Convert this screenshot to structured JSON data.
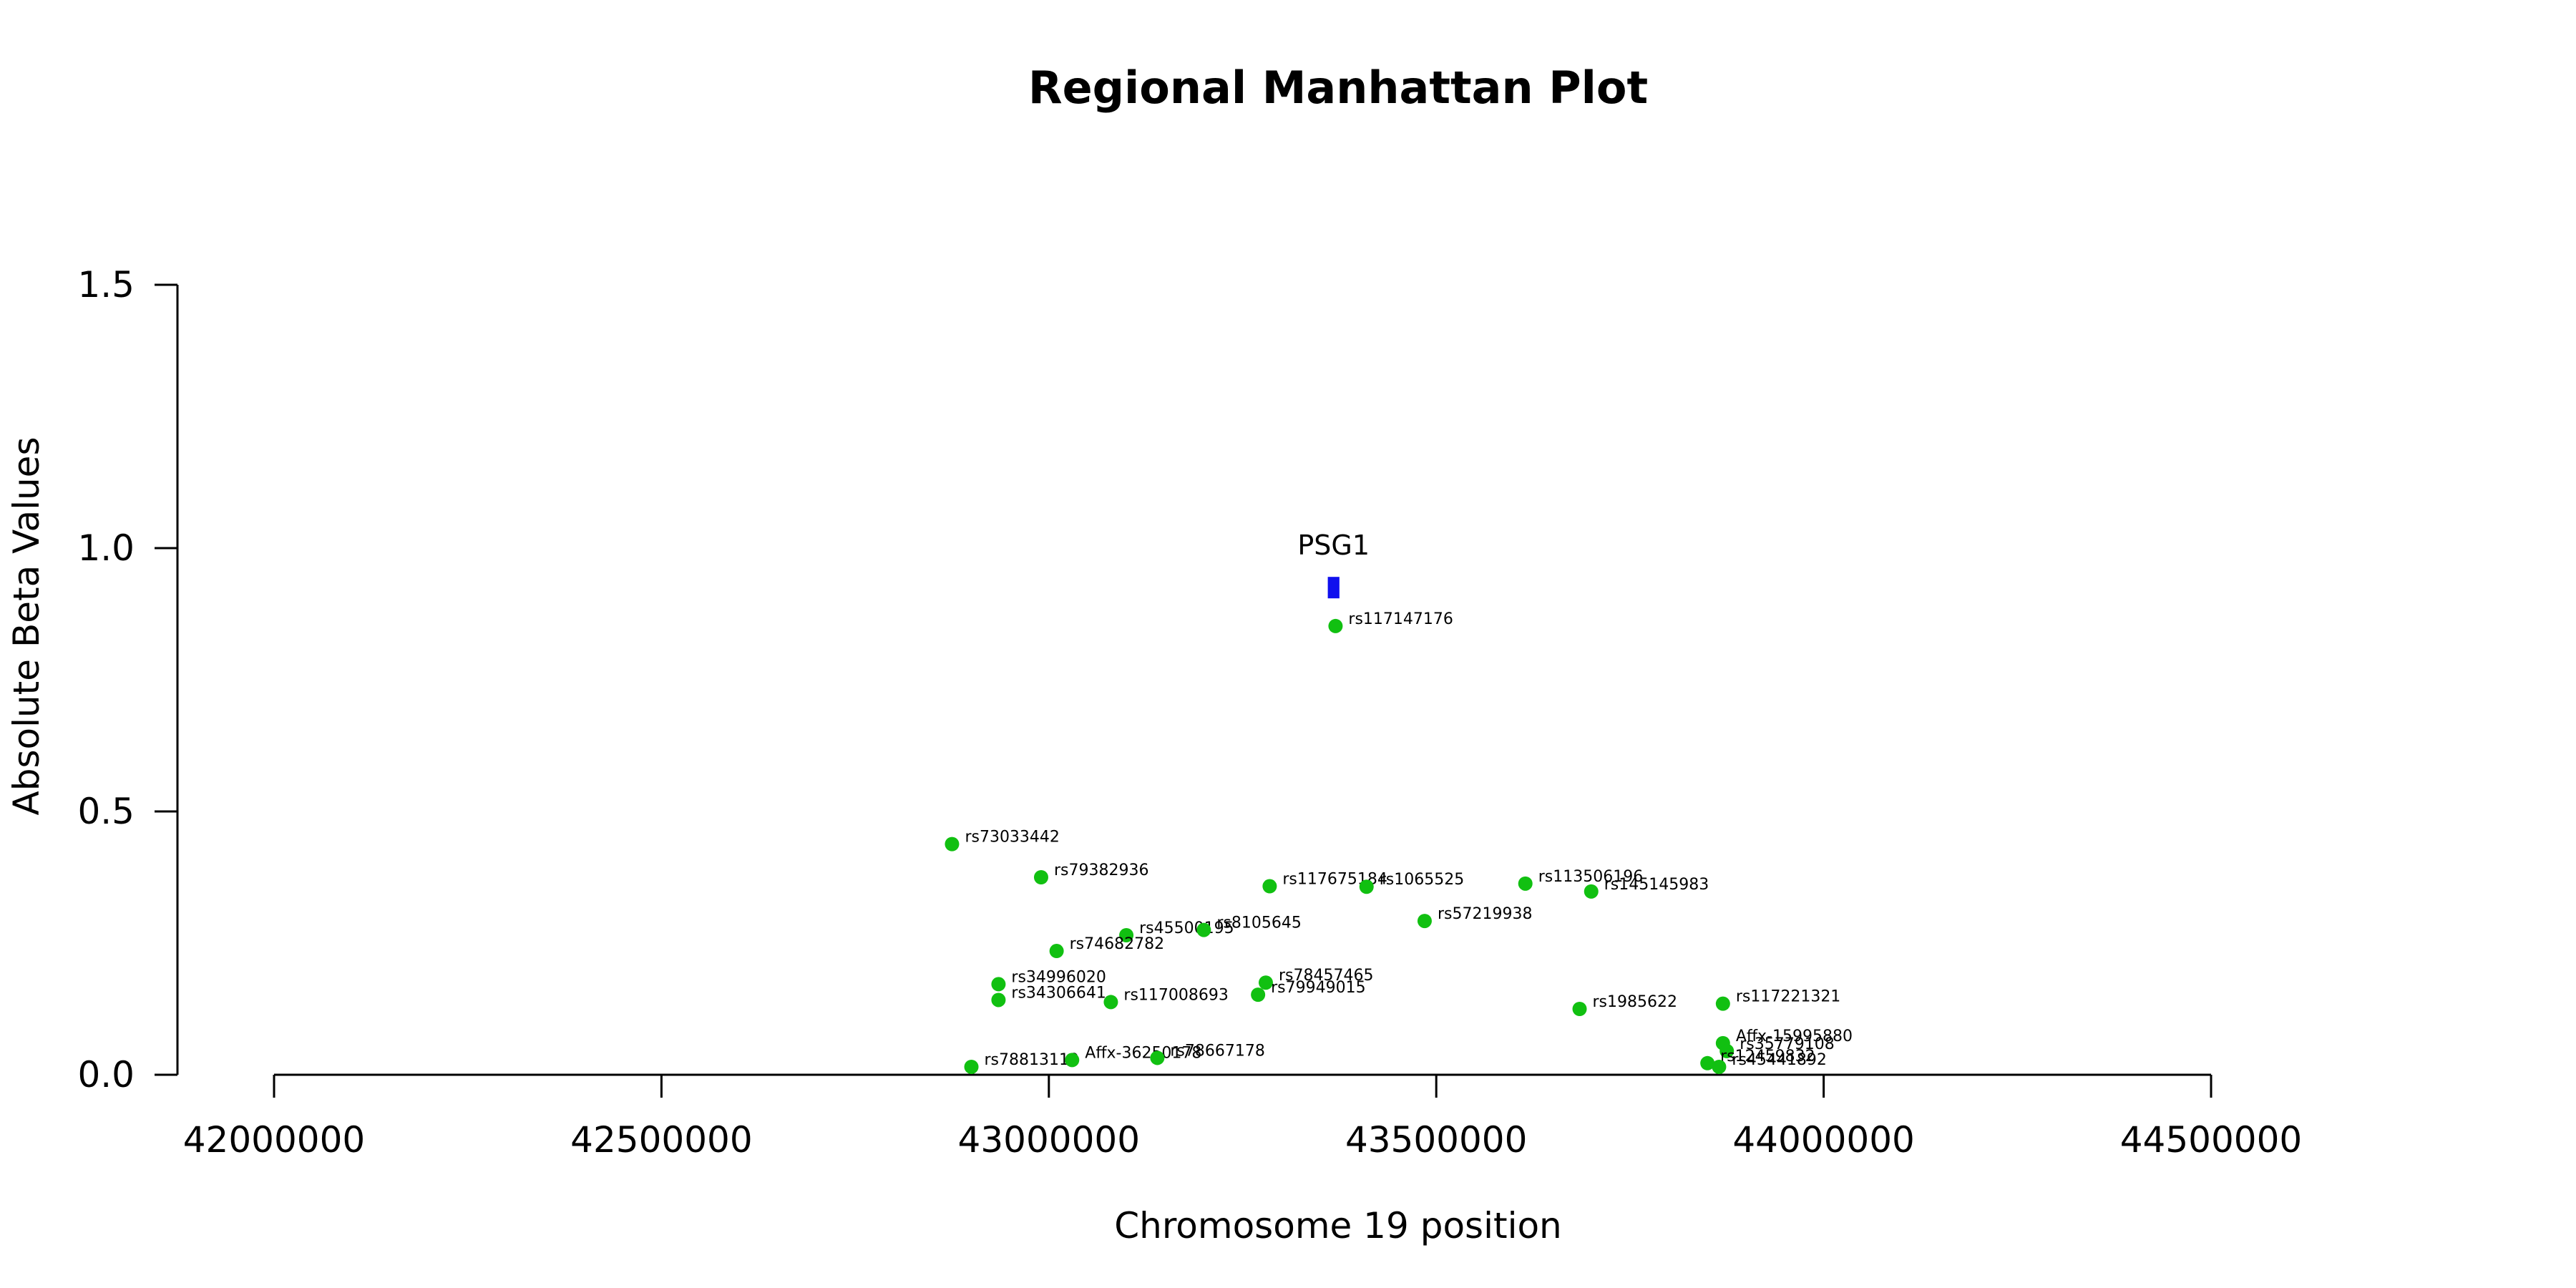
{
  "chart_data": {
    "type": "scatter",
    "title": "Regional Manhattan Plot",
    "xlabel": "Chromosome 19 position",
    "ylabel": "Absolute Beta Values",
    "xlim": [
      42000000,
      44500000
    ],
    "ylim": [
      0,
      1.5
    ],
    "x_ticks": [
      "42000000",
      "42500000",
      "43000000",
      "43500000",
      "44000000",
      "44500000"
    ],
    "y_ticks": [
      "0.0",
      "0.5",
      "1.0",
      "1.5"
    ],
    "grid": false,
    "colors": {
      "points": "#11c011",
      "gene": "#1010ee",
      "axis": "#000000"
    },
    "genes": [
      {
        "name": "PSG1",
        "start": 43360000,
        "end": 43375000,
        "y": 0.925
      }
    ],
    "points": [
      {
        "id": "rs117147176",
        "x": 43370000,
        "y": 0.852
      },
      {
        "id": "rs73033442",
        "x": 42875000,
        "y": 0.438
      },
      {
        "id": "rs79382936",
        "x": 42990000,
        "y": 0.375
      },
      {
        "id": "rs117675184",
        "x": 43285000,
        "y": 0.358
      },
      {
        "id": "rs1065525",
        "x": 43410000,
        "y": 0.357
      },
      {
        "id": "rs113506196",
        "x": 43615000,
        "y": 0.363
      },
      {
        "id": "rs145145983",
        "x": 43700000,
        "y": 0.348
      },
      {
        "id": "rs57219938",
        "x": 43485000,
        "y": 0.292
      },
      {
        "id": "rs45500195",
        "x": 43100000,
        "y": 0.265
      },
      {
        "id": "rs8105645",
        "x": 43200000,
        "y": 0.275
      },
      {
        "id": "rs74682782",
        "x": 43010000,
        "y": 0.235
      },
      {
        "id": "rs34996020",
        "x": 42935000,
        "y": 0.172
      },
      {
        "id": "rs34306641",
        "x": 42935000,
        "y": 0.142
      },
      {
        "id": "rs117008693",
        "x": 43080000,
        "y": 0.138
      },
      {
        "id": "rs78457465",
        "x": 43280000,
        "y": 0.175
      },
      {
        "id": "rs79949015",
        "x": 43270000,
        "y": 0.152
      },
      {
        "id": "rs1985622",
        "x": 43685000,
        "y": 0.125
      },
      {
        "id": "rs117221321",
        "x": 43870000,
        "y": 0.135
      },
      {
        "id": "Affx-15995880",
        "x": 43870000,
        "y": 0.06
      },
      {
        "id": "rs35779108",
        "x": 43875000,
        "y": 0.045
      },
      {
        "id": "rs12459832",
        "x": 43850000,
        "y": 0.022
      },
      {
        "id": "rs45441892",
        "x": 43865000,
        "y": 0.015
      },
      {
        "id": "rs78813119",
        "x": 42900000,
        "y": 0.015
      },
      {
        "id": "Affx-36250178",
        "x": 43030000,
        "y": 0.028
      },
      {
        "id": "rs78667178",
        "x": 43140000,
        "y": 0.032
      }
    ]
  }
}
